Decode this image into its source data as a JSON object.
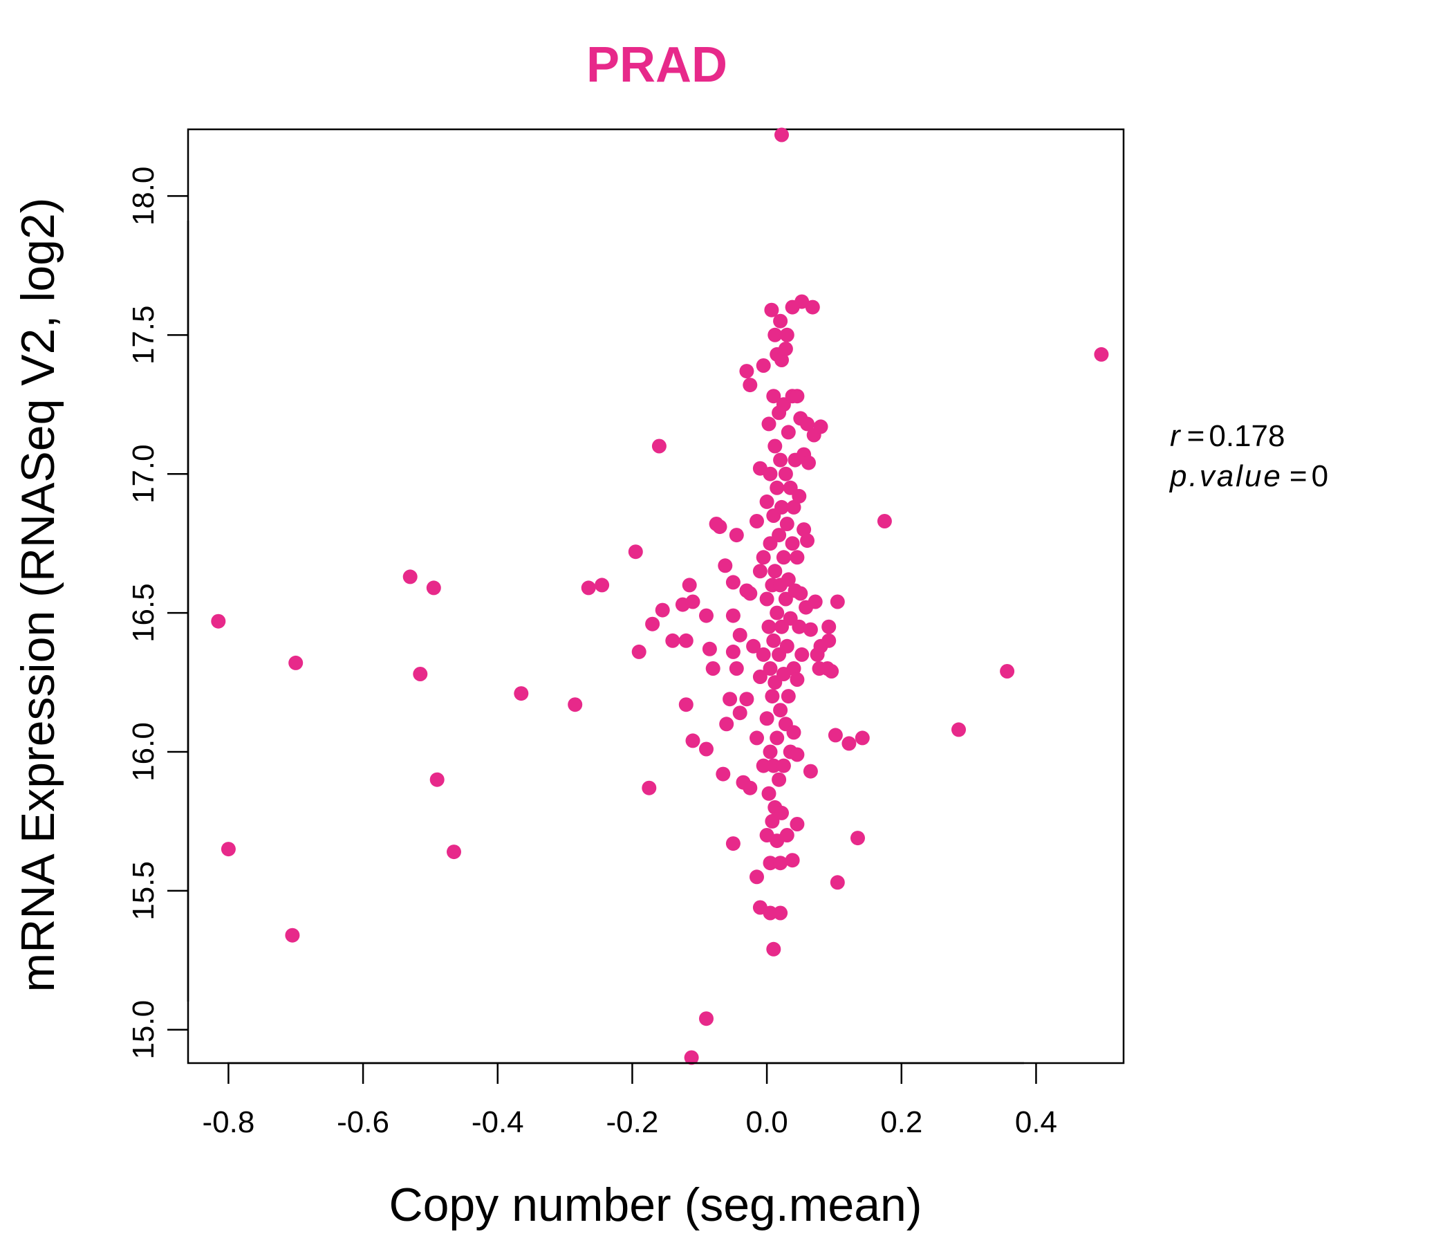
{
  "chart_data": {
    "type": "scatter",
    "title": "PRAD",
    "xlabel": "Copy number (seg.mean)",
    "ylabel": "mRNA Expression (RNASeq V2, log2)",
    "xlim": [
      -0.86,
      0.53
    ],
    "ylim": [
      14.88,
      18.24
    ],
    "xticks": [
      -0.8,
      -0.6,
      -0.4,
      -0.2,
      0.0,
      0.2,
      0.4
    ],
    "xtick_labels": [
      "-0.8",
      "-0.6",
      "-0.4",
      "-0.2",
      "0.0",
      "0.2",
      "0.4"
    ],
    "yticks": [
      15.0,
      15.5,
      16.0,
      16.5,
      17.0,
      17.5,
      18.0
    ],
    "ytick_labels": [
      "15.0",
      "15.5",
      "16.0",
      "16.5",
      "17.0",
      "17.5",
      "18.0"
    ],
    "color": "#E7298A",
    "stats": {
      "r_symbol": "r",
      "r_value": "0.178",
      "p_symbol": "p.value",
      "p_value": "0"
    },
    "points": [
      [
        -0.815,
        16.47
      ],
      [
        -0.8,
        15.65
      ],
      [
        -0.7,
        16.32
      ],
      [
        -0.705,
        15.34
      ],
      [
        -0.53,
        16.63
      ],
      [
        -0.515,
        16.28
      ],
      [
        -0.495,
        16.59
      ],
      [
        -0.49,
        15.9
      ],
      [
        -0.465,
        15.64
      ],
      [
        -0.365,
        16.21
      ],
      [
        -0.285,
        16.17
      ],
      [
        -0.265,
        16.59
      ],
      [
        -0.245,
        16.6
      ],
      [
        -0.195,
        16.72
      ],
      [
        -0.19,
        16.36
      ],
      [
        -0.175,
        15.87
      ],
      [
        -0.17,
        16.46
      ],
      [
        -0.16,
        17.1
      ],
      [
        -0.155,
        16.51
      ],
      [
        -0.14,
        16.4
      ],
      [
        -0.125,
        16.53
      ],
      [
        -0.12,
        16.4
      ],
      [
        -0.12,
        16.17
      ],
      [
        -0.115,
        16.6
      ],
      [
        -0.112,
        14.9
      ],
      [
        -0.11,
        16.54
      ],
      [
        -0.11,
        16.04
      ],
      [
        -0.09,
        16.49
      ],
      [
        -0.09,
        16.01
      ],
      [
        -0.09,
        15.04
      ],
      [
        -0.085,
        16.37
      ],
      [
        -0.08,
        16.3
      ],
      [
        -0.075,
        16.82
      ],
      [
        -0.07,
        16.81
      ],
      [
        -0.065,
        15.92
      ],
      [
        -0.062,
        16.67
      ],
      [
        -0.06,
        16.1
      ],
      [
        -0.055,
        16.19
      ],
      [
        -0.05,
        16.61
      ],
      [
        -0.05,
        16.49
      ],
      [
        -0.05,
        16.36
      ],
      [
        -0.05,
        15.67
      ],
      [
        -0.045,
        16.78
      ],
      [
        -0.045,
        16.3
      ],
      [
        -0.04,
        16.42
      ],
      [
        -0.04,
        16.14
      ],
      [
        -0.035,
        15.89
      ],
      [
        -0.03,
        17.37
      ],
      [
        -0.03,
        16.58
      ],
      [
        -0.03,
        16.19
      ],
      [
        -0.025,
        17.32
      ],
      [
        -0.025,
        16.57
      ],
      [
        -0.025,
        15.87
      ],
      [
        -0.02,
        16.38
      ],
      [
        -0.015,
        16.83
      ],
      [
        -0.015,
        16.05
      ],
      [
        -0.015,
        15.55
      ],
      [
        -0.01,
        17.02
      ],
      [
        -0.01,
        16.65
      ],
      [
        -0.01,
        16.27
      ],
      [
        -0.01,
        15.44
      ],
      [
        -0.005,
        17.39
      ],
      [
        -0.005,
        16.7
      ],
      [
        -0.005,
        16.35
      ],
      [
        -0.005,
        15.95
      ],
      [
        0.0,
        16.9
      ],
      [
        0.0,
        16.55
      ],
      [
        0.0,
        16.12
      ],
      [
        0.0,
        15.7
      ],
      [
        0.003,
        17.18
      ],
      [
        0.003,
        16.45
      ],
      [
        0.003,
        15.85
      ],
      [
        0.005,
        17.0
      ],
      [
        0.005,
        16.75
      ],
      [
        0.005,
        16.3
      ],
      [
        0.005,
        16.0
      ],
      [
        0.005,
        15.6
      ],
      [
        0.005,
        15.42
      ],
      [
        0.007,
        17.59
      ],
      [
        0.008,
        16.6
      ],
      [
        0.008,
        16.2
      ],
      [
        0.008,
        15.75
      ],
      [
        0.01,
        17.28
      ],
      [
        0.01,
        16.85
      ],
      [
        0.01,
        16.4
      ],
      [
        0.01,
        15.95
      ],
      [
        0.01,
        15.29
      ],
      [
        0.012,
        17.5
      ],
      [
        0.012,
        17.1
      ],
      [
        0.012,
        16.65
      ],
      [
        0.012,
        16.25
      ],
      [
        0.012,
        15.8
      ],
      [
        0.015,
        17.43
      ],
      [
        0.015,
        16.95
      ],
      [
        0.015,
        16.5
      ],
      [
        0.015,
        16.05
      ],
      [
        0.015,
        15.68
      ],
      [
        0.018,
        17.22
      ],
      [
        0.018,
        16.78
      ],
      [
        0.018,
        16.35
      ],
      [
        0.018,
        15.9
      ],
      [
        0.02,
        17.55
      ],
      [
        0.02,
        17.05
      ],
      [
        0.02,
        16.6
      ],
      [
        0.02,
        16.15
      ],
      [
        0.02,
        15.6
      ],
      [
        0.02,
        15.42
      ],
      [
        0.022,
        18.22
      ],
      [
        0.022,
        17.41
      ],
      [
        0.022,
        16.88
      ],
      [
        0.022,
        16.45
      ],
      [
        0.022,
        15.78
      ],
      [
        0.025,
        17.25
      ],
      [
        0.025,
        16.7
      ],
      [
        0.025,
        16.28
      ],
      [
        0.025,
        15.95
      ],
      [
        0.028,
        17.45
      ],
      [
        0.028,
        17.0
      ],
      [
        0.028,
        16.55
      ],
      [
        0.028,
        16.1
      ],
      [
        0.03,
        17.5
      ],
      [
        0.03,
        16.82
      ],
      [
        0.03,
        16.38
      ],
      [
        0.03,
        15.7
      ],
      [
        0.032,
        17.15
      ],
      [
        0.032,
        16.62
      ],
      [
        0.032,
        16.2
      ],
      [
        0.035,
        16.95
      ],
      [
        0.035,
        16.48
      ],
      [
        0.035,
        16.0
      ],
      [
        0.038,
        17.6
      ],
      [
        0.038,
        17.28
      ],
      [
        0.038,
        16.75
      ],
      [
        0.038,
        15.61
      ],
      [
        0.04,
        16.88
      ],
      [
        0.04,
        16.3
      ],
      [
        0.04,
        16.07
      ],
      [
        0.042,
        17.05
      ],
      [
        0.042,
        16.58
      ],
      [
        0.045,
        17.28
      ],
      [
        0.045,
        16.7
      ],
      [
        0.045,
        16.26
      ],
      [
        0.045,
        15.74
      ],
      [
        0.045,
        15.99
      ],
      [
        0.048,
        16.92
      ],
      [
        0.048,
        16.45
      ],
      [
        0.05,
        17.2
      ],
      [
        0.05,
        16.57
      ],
      [
        0.052,
        17.62
      ],
      [
        0.052,
        16.35
      ],
      [
        0.055,
        17.07
      ],
      [
        0.055,
        16.8
      ],
      [
        0.058,
        16.52
      ],
      [
        0.06,
        17.18
      ],
      [
        0.06,
        16.76
      ],
      [
        0.062,
        17.04
      ],
      [
        0.065,
        16.44
      ],
      [
        0.065,
        15.93
      ],
      [
        0.068,
        17.6
      ],
      [
        0.07,
        17.14
      ],
      [
        0.072,
        16.54
      ],
      [
        0.075,
        16.35
      ],
      [
        0.078,
        16.3
      ],
      [
        0.08,
        17.17
      ],
      [
        0.08,
        16.38
      ],
      [
        0.09,
        16.3
      ],
      [
        0.092,
        16.45
      ],
      [
        0.092,
        16.4
      ],
      [
        0.096,
        16.29
      ],
      [
        0.102,
        16.06
      ],
      [
        0.105,
        16.54
      ],
      [
        0.105,
        15.53
      ],
      [
        0.122,
        16.03
      ],
      [
        0.135,
        15.69
      ],
      [
        0.142,
        16.05
      ],
      [
        0.175,
        16.83
      ],
      [
        0.285,
        16.08
      ],
      [
        0.357,
        16.29
      ],
      [
        0.497,
        17.43
      ]
    ]
  }
}
